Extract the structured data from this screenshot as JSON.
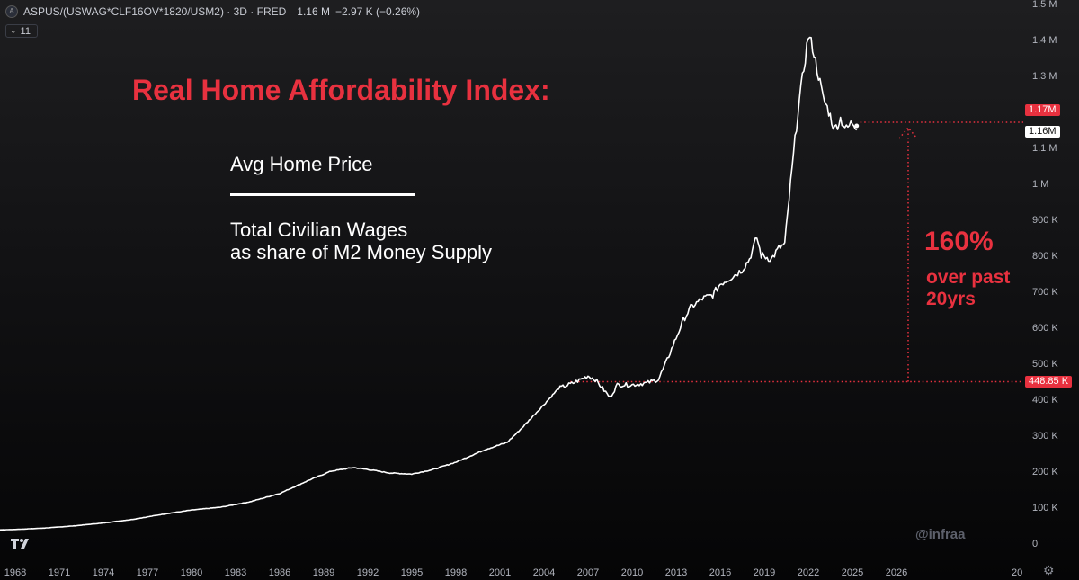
{
  "header": {
    "symbol_icon": "A",
    "symbol": "ASPUS/(USWAG*CLF16OV*1820/USM2) · 3D · FRED",
    "last": "1.16 M",
    "change": "−2.97 K (−0.26%)",
    "interval": "11",
    "interval_icon": "chevron-down-icon"
  },
  "annotations": {
    "title": "Real Home Affordability Index:",
    "numerator": "Avg Home Price",
    "denominator_line1": "Total Civilian Wages",
    "denominator_line2": "as share of M2 Money Supply",
    "pct": "160%",
    "pct_sub": "over past\n20yrs",
    "watermark": "@infraa_"
  },
  "colors": {
    "accent": "#e8313f",
    "line": "#ffffff",
    "background": "#131316"
  },
  "chart_data": {
    "type": "line",
    "x_ticks": [
      "1968",
      "1971",
      "1974",
      "1977",
      "1980",
      "1983",
      "1986",
      "1989",
      "1992",
      "1995",
      "1998",
      "2001",
      "2004",
      "2007",
      "2010",
      "2013",
      "2016",
      "2019",
      "2022",
      "2025",
      "2026",
      "20"
    ],
    "y_ticks": [
      "1.5 M",
      "1.4 M",
      "1.3 M",
      "1.2 M",
      "1.1 M",
      "1 M",
      "900 K",
      "800 K",
      "700 K",
      "600 K",
      "500 K",
      "400 K",
      "300 K",
      "200 K",
      "100 K",
      "0"
    ],
    "y_tick_values": [
      1500000,
      1400000,
      1300000,
      1200000,
      1100000,
      1000000,
      900000,
      800000,
      700000,
      600000,
      500000,
      400000,
      300000,
      200000,
      100000,
      0
    ],
    "ylim": [
      0,
      1500000
    ],
    "series": [
      {
        "values": [
          [
            1963.0,
            32000
          ],
          [
            1965.0,
            35000
          ],
          [
            1968.0,
            38000
          ],
          [
            1970.0,
            42000
          ],
          [
            1972.0,
            48000
          ],
          [
            1974.0,
            56000
          ],
          [
            1976.0,
            66000
          ],
          [
            1978.0,
            80000
          ],
          [
            1980.0,
            92000
          ],
          [
            1982.0,
            100000
          ],
          [
            1984.0,
            115000
          ],
          [
            1986.0,
            138000
          ],
          [
            1988.0,
            175000
          ],
          [
            1989.5,
            200000
          ],
          [
            1991.0,
            210000
          ],
          [
            1992.0,
            205000
          ],
          [
            1993.5,
            195000
          ],
          [
            1995.0,
            192000
          ],
          [
            1996.5,
            205000
          ],
          [
            1998.0,
            225000
          ],
          [
            2000.0,
            260000
          ],
          [
            2001.5,
            280000
          ],
          [
            2002.5,
            320000
          ],
          [
            2004.0,
            385000
          ],
          [
            2005.0,
            430000
          ],
          [
            2006.0,
            445000
          ],
          [
            2007.0,
            465000
          ],
          [
            2007.5,
            455000
          ],
          [
            2008.0,
            430000
          ],
          [
            2008.5,
            405000
          ],
          [
            2009.0,
            440000
          ],
          [
            2010.0,
            440000
          ],
          [
            2011.0,
            445000
          ],
          [
            2011.8,
            455000
          ],
          [
            2012.3,
            500000
          ],
          [
            2013.0,
            570000
          ],
          [
            2013.5,
            620000
          ],
          [
            2014.0,
            655000
          ],
          [
            2014.8,
            680000
          ],
          [
            2015.5,
            690000
          ],
          [
            2016.0,
            720000
          ],
          [
            2016.8,
            740000
          ],
          [
            2017.5,
            760000
          ],
          [
            2018.0,
            790000
          ],
          [
            2018.5,
            850000
          ],
          [
            2018.8,
            800000
          ],
          [
            2019.5,
            790000
          ],
          [
            2020.0,
            820000
          ],
          [
            2020.4,
            830000
          ],
          [
            2020.8,
            1000000
          ],
          [
            2021.3,
            1200000
          ],
          [
            2021.8,
            1350000
          ],
          [
            2022.0,
            1410000
          ],
          [
            2022.3,
            1380000
          ],
          [
            2022.7,
            1300000
          ],
          [
            2023.0,
            1240000
          ],
          [
            2023.4,
            1200000
          ],
          [
            2023.8,
            1150000
          ],
          [
            2024.2,
            1180000
          ],
          [
            2024.6,
            1150000
          ],
          [
            2025.0,
            1170000
          ],
          [
            2025.3,
            1160000
          ]
        ]
      }
    ],
    "last_value": 1160000,
    "last_label": "1.16M",
    "high_value": 1170000,
    "high_label": "1.17M",
    "base_value": 448850,
    "base_label": "448.85 K",
    "base_year": 2005.8,
    "grid": false
  }
}
